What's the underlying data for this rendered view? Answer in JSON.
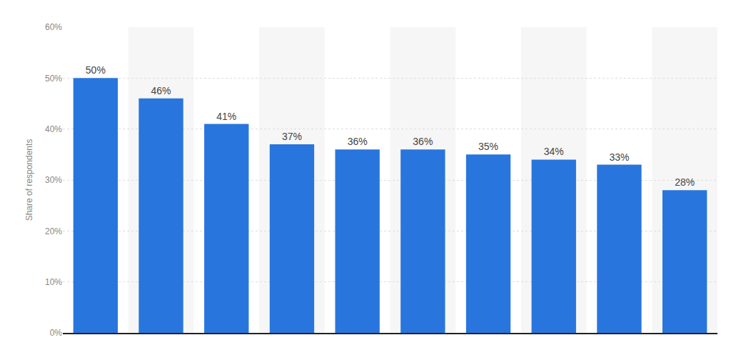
{
  "chart_data": {
    "type": "bar",
    "y_label": "Share of respondents",
    "categories": [
      null,
      null,
      null,
      null,
      null,
      null,
      null,
      null,
      null,
      null
    ],
    "values": [
      50,
      46,
      41,
      37,
      36,
      36,
      35,
      34,
      33,
      28
    ],
    "value_labels": [
      "50%",
      "46%",
      "41%",
      "37%",
      "36%",
      "36%",
      "35%",
      "34%",
      "33%",
      "28%"
    ],
    "color": "#2876dd",
    "ylim": [
      0,
      60
    ],
    "yticks": [
      {
        "value": 0,
        "label": "0%"
      },
      {
        "value": 10,
        "label": "10%"
      },
      {
        "value": 20,
        "label": "20%"
      },
      {
        "value": 30,
        "label": "30%"
      },
      {
        "value": 40,
        "label": "40%"
      },
      {
        "value": 50,
        "label": "50%"
      },
      {
        "value": 60,
        "label": "60%"
      }
    ],
    "grid": true,
    "data_labels": true,
    "tick_labels": "y"
  }
}
